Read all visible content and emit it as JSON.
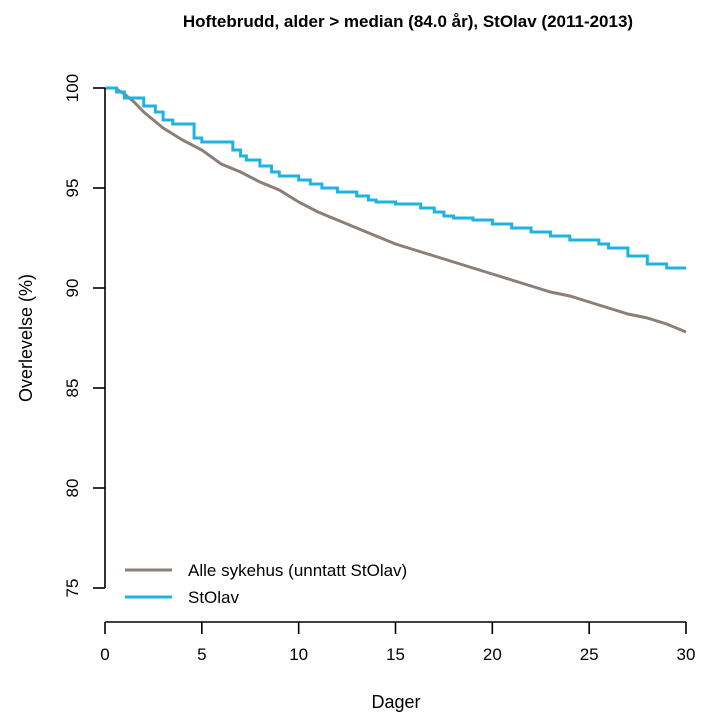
{
  "chart_data": {
    "type": "line",
    "title": "Hoftebrudd, alder > median (84.0 år), StOlav (2011-2013)",
    "xlabel": "Dager",
    "ylabel": "Overlevelse (%)",
    "xlim": [
      0,
      30
    ],
    "ylim": [
      75,
      100
    ],
    "xticks": [
      0,
      5,
      10,
      15,
      20,
      25,
      30
    ],
    "yticks": [
      75,
      80,
      85,
      90,
      95,
      100
    ],
    "grid": false,
    "legend_position": "bottom-left",
    "series": [
      {
        "name": "Alle sykehus (unntatt StOlav)",
        "color": "#8c7f78",
        "step": false,
        "x": [
          0,
          0.5,
          1,
          1.5,
          2,
          3,
          4,
          5,
          6,
          7,
          8,
          9,
          10,
          11,
          12,
          13,
          14,
          15,
          16,
          17,
          18,
          19,
          20,
          21,
          22,
          23,
          24,
          25,
          26,
          27,
          28,
          29,
          30
        ],
        "y": [
          100,
          100,
          99.7,
          99.3,
          98.8,
          98.0,
          97.4,
          96.9,
          96.2,
          95.8,
          95.3,
          94.9,
          94.3,
          93.8,
          93.4,
          93.0,
          92.6,
          92.2,
          91.9,
          91.6,
          91.3,
          91.0,
          90.7,
          90.4,
          90.1,
          89.8,
          89.6,
          89.3,
          89.0,
          88.7,
          88.5,
          88.2,
          87.8
        ]
      },
      {
        "name": "StOlav",
        "color": "#1fb3e1",
        "step": true,
        "x": [
          0,
          0.6,
          1.0,
          2.0,
          2.6,
          3.0,
          3.5,
          4.6,
          5.0,
          6.6,
          7.0,
          7.3,
          8.0,
          8.6,
          9.0,
          10.0,
          10.6,
          11.2,
          12.0,
          13.0,
          13.6,
          14.0,
          15.0,
          16.3,
          17.0,
          17.5,
          18.0,
          19.0,
          20.0,
          21.0,
          22.0,
          23.0,
          24.0,
          25.5,
          26.0,
          27.0,
          28.0,
          29.0,
          30.0
        ],
        "y": [
          100,
          99.8,
          99.5,
          99.1,
          98.8,
          98.4,
          98.2,
          97.5,
          97.3,
          96.9,
          96.6,
          96.4,
          96.1,
          95.8,
          95.6,
          95.4,
          95.2,
          95.0,
          94.8,
          94.6,
          94.4,
          94.3,
          94.2,
          94.0,
          93.8,
          93.6,
          93.5,
          93.4,
          93.2,
          93.0,
          92.8,
          92.6,
          92.4,
          92.2,
          92.0,
          91.6,
          91.2,
          91.0,
          91.0
        ]
      }
    ]
  }
}
